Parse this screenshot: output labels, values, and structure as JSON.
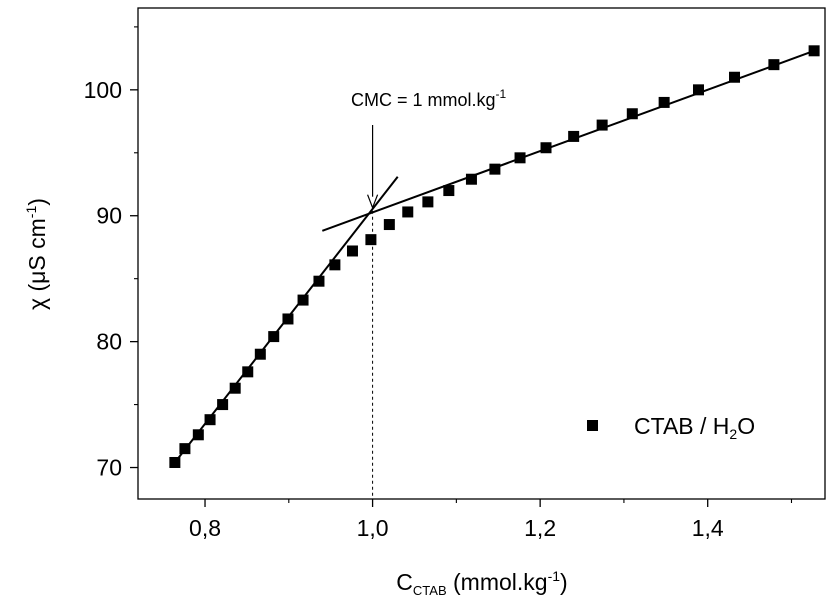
{
  "chart_data": {
    "type": "scatter",
    "title": "",
    "xlabel": {
      "main": "C",
      "sub": "CTAB",
      "rest": " (mmol.kg",
      "sup": "-1",
      "end": ")"
    },
    "ylabel": {
      "main": "χ (μS cm",
      "sup": "-1",
      "end": ")"
    },
    "xlim": [
      0.72,
      1.54
    ],
    "ylim": [
      67.5,
      106.5
    ],
    "xticks": [
      {
        "value": 0.8,
        "label": "0,8"
      },
      {
        "value": 1.0,
        "label": "1,0"
      },
      {
        "value": 1.2,
        "label": "1,2"
      },
      {
        "value": 1.4,
        "label": "1,4"
      }
    ],
    "yticks": [
      {
        "value": 70,
        "label": "70"
      },
      {
        "value": 80,
        "label": "80"
      },
      {
        "value": 90,
        "label": "90"
      },
      {
        "value": 100,
        "label": "100"
      }
    ],
    "legend": {
      "position": "bottom-right",
      "label": {
        "main": "CTAB / H",
        "sub": "2",
        "end": "O"
      }
    },
    "annotation": {
      "text": {
        "main": "CMC = 1 mmol.kg",
        "sup": "-1"
      },
      "x": 1.0,
      "y": 90.4
    },
    "series": [
      {
        "name": "CTAB / H2O",
        "marker": "square",
        "color": "#000000",
        "x": [
          0.764,
          0.776,
          0.792,
          0.806,
          0.821,
          0.836,
          0.851,
          0.866,
          0.882,
          0.899,
          0.917,
          0.936,
          0.955,
          0.976,
          0.998,
          1.02,
          1.042,
          1.066,
          1.091,
          1.118,
          1.146,
          1.176,
          1.207,
          1.24,
          1.274,
          1.31,
          1.348,
          1.389,
          1.432,
          1.479,
          1.527
        ],
        "y": [
          70.4,
          71.5,
          72.6,
          73.8,
          75.0,
          76.3,
          77.6,
          79.0,
          80.4,
          81.8,
          83.3,
          84.8,
          86.1,
          87.2,
          88.1,
          89.3,
          90.3,
          91.1,
          92.0,
          92.9,
          93.7,
          94.6,
          95.4,
          96.3,
          97.2,
          98.1,
          99.0,
          100.0,
          101.0,
          102.0,
          103.1
        ]
      }
    ],
    "fit_lines": [
      {
        "x": [
          0.764,
          1.03
        ],
        "y": [
          70.4,
          93.1
        ]
      },
      {
        "x": [
          0.94,
          1.527
        ],
        "y": [
          88.8,
          103.1
        ]
      }
    ],
    "grid": false
  }
}
